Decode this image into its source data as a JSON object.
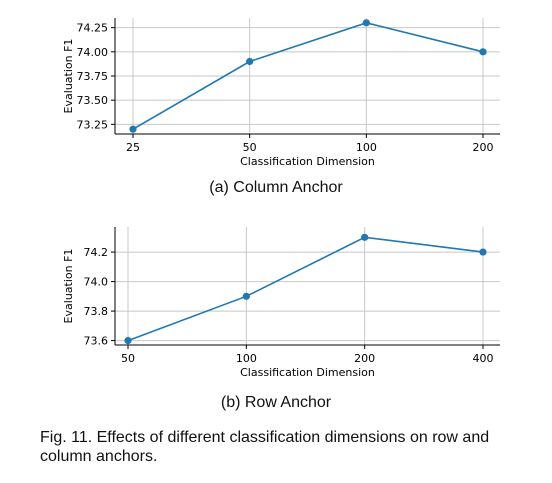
{
  "chart_data": [
    {
      "type": "line",
      "title": "",
      "xlabel": "Classification Dimension",
      "ylabel": "Evaluation F1",
      "categories": [
        "25",
        "50",
        "100",
        "200"
      ],
      "series": [
        {
          "values": [
            73.2,
            73.9,
            74.3,
            74.0
          ]
        }
      ],
      "ylim": [
        73.15,
        74.35
      ],
      "yticks": [
        73.25,
        73.5,
        73.75,
        74.0,
        74.25
      ],
      "ytick_labels": [
        "73.25",
        "73.50",
        "73.75",
        "74.00",
        "74.25"
      ],
      "grid": true,
      "color": "#1f77b4",
      "caption": "(a) Column Anchor"
    },
    {
      "type": "line",
      "title": "",
      "xlabel": "Classification Dimension",
      "ylabel": "Evaluation F1",
      "categories": [
        "50",
        "100",
        "200",
        "400"
      ],
      "series": [
        {
          "values": [
            73.6,
            73.9,
            74.3,
            74.2
          ]
        }
      ],
      "ylim": [
        73.57,
        74.37
      ],
      "yticks": [
        73.6,
        73.8,
        74.0,
        74.2
      ],
      "ytick_labels": [
        "73.6",
        "73.8",
        "74.0",
        "74.2"
      ],
      "grid": true,
      "color": "#1f77b4",
      "caption": "(b) Row Anchor"
    }
  ],
  "figure_caption": "Fig. 11. Effects of different classification dimensions on row and column anchors."
}
